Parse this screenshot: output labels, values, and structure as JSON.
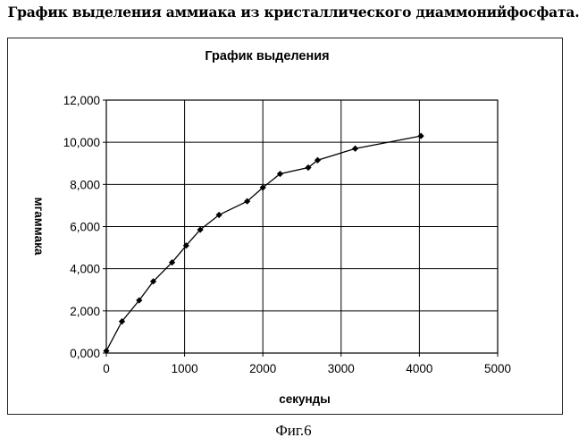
{
  "page": {
    "title": "График  выделения аммиака из кристаллического диаммонийфосфата.",
    "caption": "Фиг.6"
  },
  "chart_data": {
    "type": "line",
    "title": "График выделения",
    "xlabel": "секунды",
    "ylabel": "мгаммака",
    "xlim": [
      0,
      5000
    ],
    "ylim": [
      0,
      12
    ],
    "x_ticks": [
      0,
      1000,
      2000,
      3000,
      4000,
      5000
    ],
    "x_tick_labels": [
      "0",
      "1000",
      "2000",
      "3000",
      "4000",
      "5000"
    ],
    "y_ticks": [
      0,
      2,
      4,
      6,
      8,
      10,
      12
    ],
    "y_tick_labels": [
      "0,000",
      "2,000",
      "4,000",
      "6,000",
      "8,000",
      "10,000",
      "12,000"
    ],
    "grid": true,
    "legend": "none",
    "marker": "diamond",
    "series_color": "#000000",
    "x": [
      0,
      200,
      420,
      600,
      840,
      1020,
      1200,
      1440,
      1800,
      2000,
      2220,
      2580,
      2700,
      3180,
      4020
    ],
    "y": [
      0.1,
      1.5,
      2.5,
      3.4,
      4.3,
      5.1,
      5.85,
      6.55,
      7.2,
      7.85,
      8.5,
      8.8,
      9.15,
      9.7,
      10.3
    ]
  }
}
